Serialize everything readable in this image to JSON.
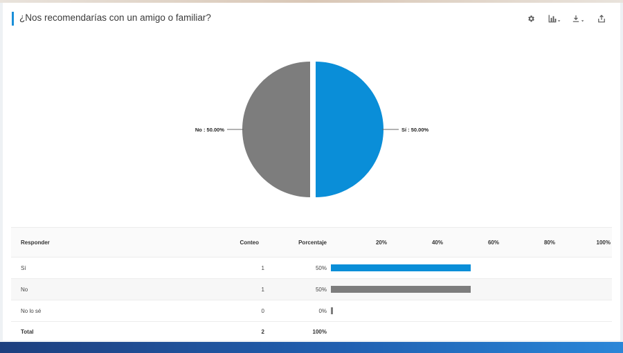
{
  "title": "¿Nos recomendarías con un amigo o familiar?",
  "toolbar": {
    "icons": [
      "gear-icon",
      "chart-type-icon",
      "download-icon",
      "share-icon"
    ]
  },
  "colors": {
    "si": "#0a8ed8",
    "no": "#7d7d7d",
    "accent": "#1a8fd8",
    "nolose": "#7d7d7d"
  },
  "chart_data": {
    "type": "pie",
    "slices": [
      {
        "label": "Sí",
        "value": 50.0,
        "display": "Sí : 50.00%",
        "color": "#0a8ed8"
      },
      {
        "label": "No",
        "value": 50.0,
        "display": "No : 50.00%",
        "color": "#7d7d7d"
      }
    ]
  },
  "table": {
    "headers": {
      "response": "Responder",
      "count": "Conteo",
      "percent": "Porcentaje"
    },
    "scale": [
      "20%",
      "40%",
      "60%",
      "80%",
      "100%"
    ],
    "rows": [
      {
        "label": "Sí",
        "count": "1",
        "percent": "50%",
        "value": 50,
        "color": "#0a8ed8"
      },
      {
        "label": "No",
        "count": "1",
        "percent": "50%",
        "value": 50,
        "color": "#7d7d7d"
      },
      {
        "label": "No lo sé",
        "count": "0",
        "percent": "0%",
        "value": 0,
        "color": "#7d7d7d"
      }
    ],
    "total": {
      "label": "Total",
      "count": "2",
      "percent": "100%"
    }
  }
}
